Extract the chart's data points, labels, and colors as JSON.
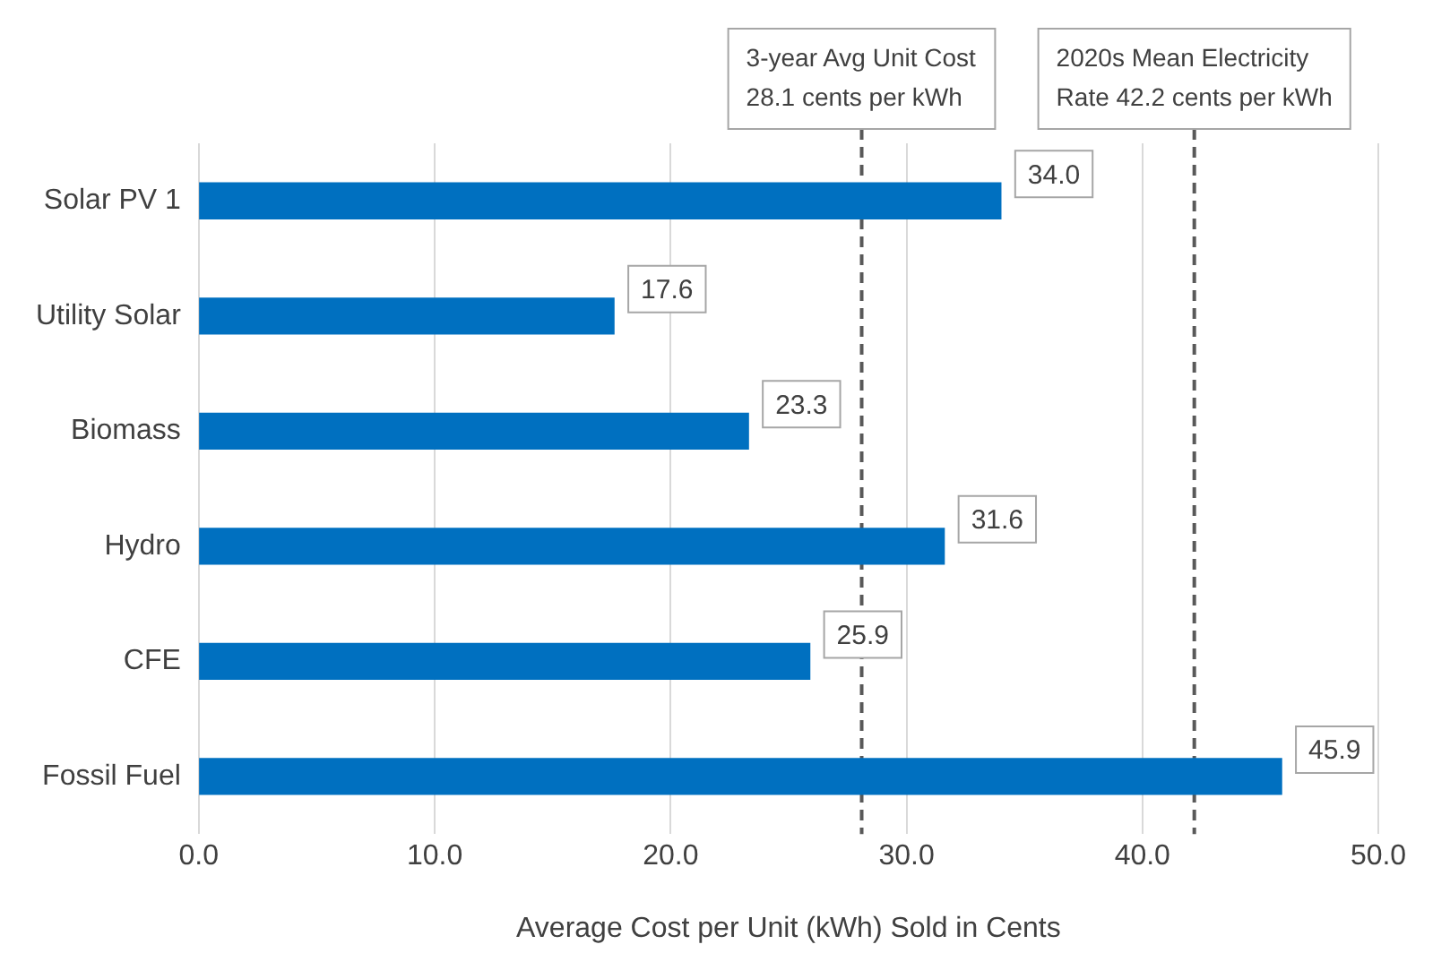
{
  "chart_data": {
    "type": "bar",
    "orientation": "horizontal",
    "xlabel": "Average Cost per Unit (kWh) Sold in Cents",
    "categories": [
      "Solar PV 1",
      "Utility Solar",
      "Biomass",
      "Hydro",
      "CFE",
      "Fossil Fuel"
    ],
    "values": [
      34.0,
      17.6,
      23.3,
      31.6,
      25.9,
      45.9
    ],
    "value_labels": [
      "34.0",
      "17.6",
      "23.3",
      "31.6",
      "25.9",
      "45.9"
    ],
    "color": "#0070c0",
    "xlim": [
      0,
      50
    ],
    "xticks": [
      {
        "value": 0,
        "label": "0.0"
      },
      {
        "value": 10,
        "label": "10.0"
      },
      {
        "value": 20,
        "label": "20.0"
      },
      {
        "value": 30,
        "label": "30.0"
      },
      {
        "value": 40,
        "label": "40.0"
      },
      {
        "value": 50,
        "label": "50.0"
      }
    ],
    "grid": "x",
    "ref_lines": [
      {
        "axis": "x",
        "value": 28.1,
        "label": "3-year Avg Unit Cost\n28.1 cents per kWh",
        "line_style": "dashed",
        "color": "#595959"
      },
      {
        "axis": "x",
        "value": 42.2,
        "label": "2020s Mean Electricity\nRate 42.2 cents per kWh",
        "line_style": "dashed",
        "color": "#595959"
      }
    ]
  }
}
